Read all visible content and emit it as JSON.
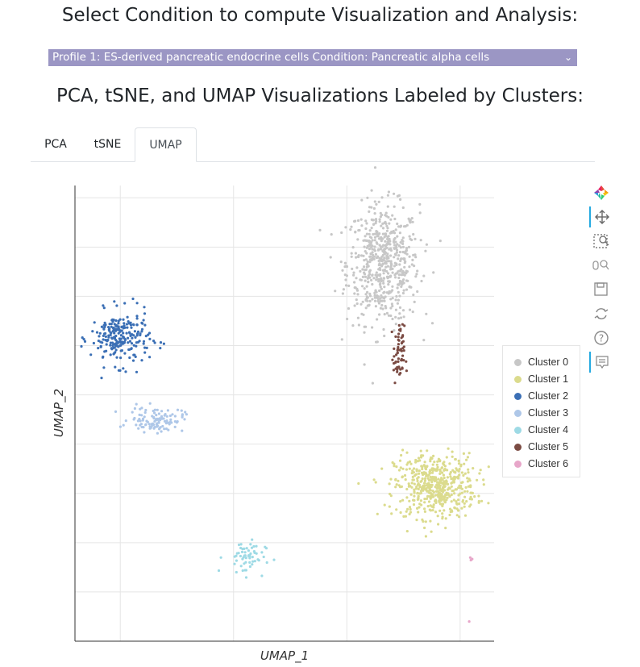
{
  "header": {
    "title": "Select Condition to compute Visualization and Analysis:"
  },
  "condition_select": {
    "value": "Profile 1: ES-derived pancreatic endocrine cells Condition: Pancreatic alpha cells",
    "background": "#9b96c4"
  },
  "section": {
    "title": "PCA, tSNE, and UMAP Visualizations Labeled by Clusters:"
  },
  "tabs": [
    {
      "label": "PCA",
      "active": false
    },
    {
      "label": "tSNE",
      "active": false
    },
    {
      "label": "UMAP",
      "active": true
    }
  ],
  "toolbar": {
    "icons": [
      "bokeh-logo-icon",
      "pan-icon",
      "box-zoom-icon",
      "wheel-zoom-icon",
      "save-icon",
      "reset-icon",
      "help-icon",
      "hover-icon"
    ]
  },
  "chart_data": {
    "type": "scatter",
    "xlabel": "UMAP_1",
    "ylabel": "UMAP_2",
    "xlim": [
      -13,
      5.5
    ],
    "ylim": [
      -10,
      8.5
    ],
    "grid": true,
    "tick_labels_visible": false,
    "legend_position": "right",
    "series": [
      {
        "name": "Cluster 0",
        "color": "#c7c7c7",
        "region": {
          "cx": 0.6,
          "cy": 5.3,
          "sx": 0.8,
          "sy": 1.2
        },
        "count": 600
      },
      {
        "name": "Cluster 1",
        "color": "#dbdb8d",
        "region": {
          "cx": 2.9,
          "cy": -3.7,
          "sx": 0.9,
          "sy": 0.65
        },
        "count": 520
      },
      {
        "name": "Cluster 2",
        "color": "#3b6fb5",
        "region": {
          "cx": -11.0,
          "cy": 2.3,
          "sx": 0.65,
          "sy": 0.55
        },
        "count": 230
      },
      {
        "name": "Cluster 3",
        "color": "#aec7e8",
        "region": {
          "cx": -9.4,
          "cy": -1.0,
          "sx": 0.6,
          "sy": 0.25
        },
        "count": 110
      },
      {
        "name": "Cluster 4",
        "color": "#9edae5",
        "region": {
          "cx": -5.5,
          "cy": -6.6,
          "sx": 0.45,
          "sy": 0.35
        },
        "count": 60
      },
      {
        "name": "Cluster 5",
        "color": "#7b4b43",
        "region": {
          "cx": 1.3,
          "cy": 1.6,
          "sx": 0.12,
          "sy": 0.6
        },
        "count": 60
      },
      {
        "name": "Cluster 6",
        "color": "#e7a6c9",
        "region": {
          "cx": 4.5,
          "cy": -6.6,
          "sx": 0.05,
          "sy": 0.1
        },
        "count": 4
      }
    ]
  }
}
